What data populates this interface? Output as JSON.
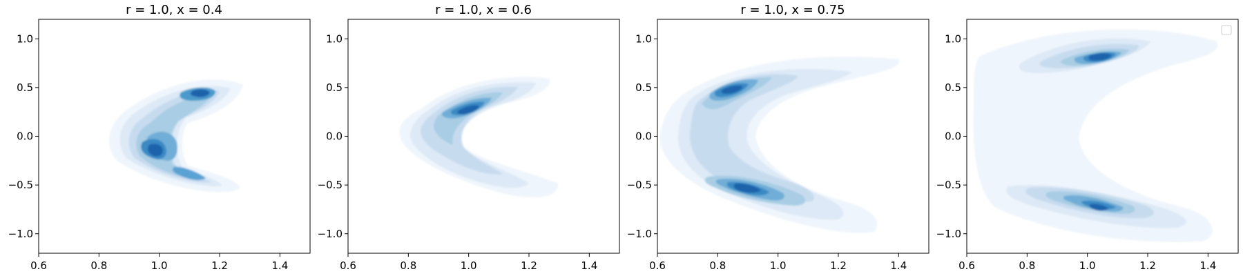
{
  "chart_data": [
    {
      "type": "kde-contour",
      "title": "r = 1.0, x = 0.4",
      "xlim": [
        0.6,
        1.5
      ],
      "ylim": [
        -1.2,
        1.2
      ],
      "x_ticks": [
        "0.6",
        "0.8",
        "1.0",
        "1.2",
        "1.4"
      ],
      "y_ticks": [
        "1.0",
        "0.5",
        "0.0",
        "−0.5",
        "−1.0"
      ],
      "cmap": "Blues",
      "curve": {
        "upper_tip": [
          1.27,
          0.5
        ],
        "vertex": [
          0.9,
          -0.02
        ],
        "lower_tip": [
          1.27,
          -0.55
        ]
      },
      "peaks": [
        [
          0.99,
          -0.15
        ],
        [
          1.16,
          0.43
        ],
        [
          1.14,
          -0.4
        ]
      ],
      "legend": false
    },
    {
      "type": "kde-contour",
      "title": "r = 1.0, x = 0.6",
      "xlim": [
        0.6,
        1.5
      ],
      "ylim": [
        -1.2,
        1.2
      ],
      "x_ticks": [
        "0.6",
        "0.8",
        "1.0",
        "1.2",
        "1.4"
      ],
      "y_ticks": [
        "1.0",
        "0.5",
        "0.0",
        "−0.5",
        "−1.0"
      ],
      "cmap": "Blues",
      "curve": {
        "upper_tip": [
          1.25,
          0.5
        ],
        "vertex": [
          0.85,
          0.05
        ],
        "lower_tip": [
          1.3,
          -0.6
        ]
      },
      "peaks": [
        [
          0.99,
          0.25
        ],
        [
          0.95,
          -0.05
        ]
      ],
      "legend": false
    },
    {
      "type": "kde-contour",
      "title": "r = 1.0, x = 0.75",
      "xlim": [
        0.6,
        1.5
      ],
      "ylim": [
        -1.2,
        1.2
      ],
      "x_ticks": [
        "0.6",
        "0.8",
        "1.0",
        "1.2",
        "1.4"
      ],
      "y_ticks": [
        "1.0",
        "0.5",
        "0.0",
        "−0.5",
        "−1.0"
      ],
      "cmap": "Blues",
      "curve": {
        "upper_tip": [
          1.4,
          0.78
        ],
        "vertex": [
          0.72,
          0.0
        ],
        "lower_tip": [
          1.4,
          -0.85
        ]
      },
      "peaks": [
        [
          0.87,
          0.47
        ],
        [
          0.97,
          -0.57
        ]
      ],
      "legend": false
    },
    {
      "type": "kde-contour",
      "title": "",
      "xlim": [
        0.6,
        1.5
      ],
      "ylim": [
        -1.2,
        1.2
      ],
      "x_ticks": [
        "0.6",
        "0.8",
        "1.0",
        "1.2",
        "1.4"
      ],
      "y_ticks": [
        "1.0",
        "0.5",
        "0.0",
        "−0.5",
        "−1.0"
      ],
      "cmap": "Blues",
      "curve": {
        "upper_tip": [
          1.45,
          0.85
        ],
        "vertex": [
          0.67,
          0.0
        ],
        "lower_tip": [
          1.45,
          -1.0
        ]
      },
      "peaks": [
        [
          1.1,
          0.83
        ],
        [
          1.1,
          -0.82
        ]
      ],
      "legend": true
    }
  ]
}
